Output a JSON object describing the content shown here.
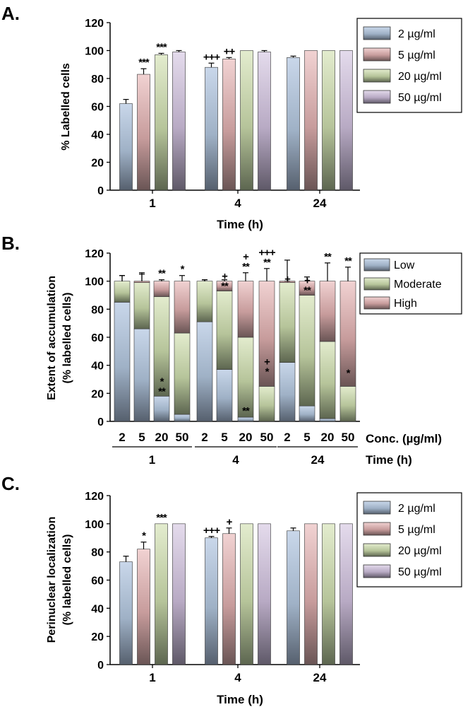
{
  "colors": {
    "low": "#b5c7dd",
    "moderate": "#d5e1b9",
    "high": "#e8bdbd",
    "fifty": "#d7cbe0",
    "bar_dark": "#555566",
    "axis": "#000000"
  },
  "chart_data": [
    {
      "panel_label": "A.",
      "type": "bar",
      "ylabel": "% Labelled cells",
      "xlabel": "Time (h)",
      "ylim": [
        0,
        120
      ],
      "yticks": [
        0,
        20,
        40,
        60,
        80,
        100,
        120
      ],
      "categories": [
        "1",
        "4",
        "24"
      ],
      "legend_position": "top-right",
      "series": [
        {
          "name": "2 µg/ml",
          "color": "#b5c7dd",
          "values": [
            62,
            88,
            95
          ],
          "errors": [
            3,
            3,
            1
          ],
          "annotations": [
            "",
            "+++",
            ""
          ]
        },
        {
          "name": "5 µg/ml",
          "color": "#e8bdbd",
          "values": [
            83,
            94,
            100
          ],
          "errors": [
            4,
            1,
            0
          ],
          "annotations": [
            "***",
            "++",
            ""
          ]
        },
        {
          "name": "20 µg/ml",
          "color": "#d5e1b9",
          "values": [
            97,
            100,
            100
          ],
          "errors": [
            1,
            0,
            0
          ],
          "annotations": [
            "***",
            "",
            ""
          ]
        },
        {
          "name": "50 µg/ml",
          "color": "#d7cbe0",
          "values": [
            99,
            99,
            100
          ],
          "errors": [
            1,
            1,
            0
          ],
          "annotations": [
            "",
            "",
            ""
          ]
        }
      ]
    },
    {
      "panel_label": "B.",
      "type": "bar",
      "stacked": true,
      "ylabel": "Extent of accumulation",
      "ylabel2": "(% labelled cells)",
      "xlabel": "Conc. (µg/ml)",
      "xlabel2": "Time (h)",
      "ylim": [
        0,
        120
      ],
      "yticks": [
        0,
        20,
        40,
        60,
        80,
        100,
        120
      ],
      "categories": [
        "2",
        "5",
        "20",
        "50",
        "2",
        "5",
        "20",
        "50",
        "2",
        "5",
        "20",
        "50"
      ],
      "groups": [
        "1",
        "4",
        "24"
      ],
      "legend_position": "top-right",
      "series": [
        {
          "name": "Low",
          "color": "#b5c7dd",
          "values": [
            85,
            66,
            18,
            5,
            71,
            37,
            3,
            0,
            42,
            11,
            2,
            0
          ],
          "errors": [
            5,
            10,
            2,
            2,
            3,
            3,
            3,
            1,
            18,
            3,
            2,
            0
          ]
        },
        {
          "name": "Moderate",
          "color": "#d5e1b9",
          "values": [
            15,
            33,
            71,
            58,
            29,
            56,
            57,
            25,
            57,
            79,
            55,
            25
          ],
          "errors": [
            4,
            6,
            2,
            2,
            1,
            2,
            4,
            9,
            1,
            2,
            13,
            8
          ]
        },
        {
          "name": "High",
          "color": "#e8bdbd",
          "values": [
            0,
            1,
            11,
            37,
            0,
            7,
            40,
            75,
            1,
            10,
            43,
            75
          ],
          "errors": [
            4,
            6,
            1,
            4,
            1,
            1,
            6,
            9,
            15,
            3,
            13,
            10
          ]
        }
      ],
      "annotations": {
        "top": [
          "",
          "",
          "**",
          "*",
          "",
          "",
          "+\n**",
          "+++\n**",
          "",
          "",
          "**",
          "**"
        ],
        "moderate": [
          "",
          "",
          "",
          "",
          "",
          "+\n**",
          "",
          "+\n*",
          "+",
          "+\n**",
          "",
          "*"
        ],
        "low": [
          "",
          "",
          "*\n**",
          "",
          "",
          "",
          "**",
          "",
          "",
          "",
          "",
          ""
        ]
      }
    },
    {
      "panel_label": "C.",
      "type": "bar",
      "ylabel": "Perinuclear localization",
      "ylabel2": "(% labelled cells)",
      "xlabel": "Time (h)",
      "ylim": [
        0,
        120
      ],
      "yticks": [
        0,
        20,
        40,
        60,
        80,
        100,
        120
      ],
      "categories": [
        "1",
        "4",
        "24"
      ],
      "legend_position": "top-right",
      "series": [
        {
          "name": "2 µg/ml",
          "color": "#b5c7dd",
          "values": [
            73,
            90,
            95
          ],
          "errors": [
            4,
            1,
            2
          ],
          "annotations": [
            "",
            "+++",
            ""
          ]
        },
        {
          "name": "5 µg/ml",
          "color": "#e8bdbd",
          "values": [
            82,
            93,
            100
          ],
          "errors": [
            5,
            4,
            0
          ],
          "annotations": [
            "*",
            "+",
            ""
          ]
        },
        {
          "name": "20 µg/ml",
          "color": "#d5e1b9",
          "values": [
            100,
            100,
            100
          ],
          "errors": [
            0,
            0,
            0
          ],
          "annotations": [
            "***",
            "",
            ""
          ]
        },
        {
          "name": "50 µg/ml",
          "color": "#d7cbe0",
          "values": [
            100,
            100,
            100
          ],
          "errors": [
            0,
            0,
            0
          ],
          "annotations": [
            "",
            "",
            ""
          ]
        }
      ]
    }
  ]
}
